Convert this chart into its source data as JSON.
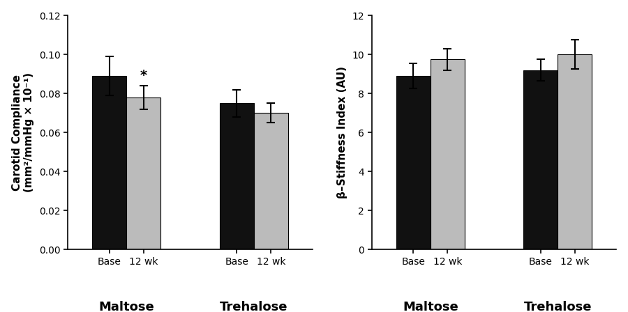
{
  "left_panel": {
    "ylabel": "Carotid Compliance\n(mm²/mmHg × 10⁻¹)",
    "ylim": [
      0,
      0.12
    ],
    "yticks": [
      0.0,
      0.02,
      0.04,
      0.06,
      0.08,
      0.1,
      0.12
    ],
    "ytick_labels": [
      "0.00",
      "0.02",
      "0.04",
      "0.06",
      "0.08",
      "0.10",
      "0.12"
    ],
    "bars": [
      {
        "group": "Maltose",
        "label": "Base",
        "value": 0.089,
        "err": 0.01,
        "color": "#111111"
      },
      {
        "group": "Maltose",
        "label": "12 wk",
        "value": 0.078,
        "err": 0.006,
        "color": "#bbbbbb",
        "sig": "*"
      },
      {
        "group": "Trehalose",
        "label": "Base",
        "value": 0.075,
        "err": 0.007,
        "color": "#111111"
      },
      {
        "group": "Trehalose",
        "label": "12 wk",
        "value": 0.07,
        "err": 0.005,
        "color": "#bbbbbb"
      }
    ],
    "group_labels": [
      "Maltose",
      "Trehalose"
    ],
    "group_centers": [
      1.0,
      2.3
    ],
    "group_label_fontsize": 13,
    "tick_label_fontsize": 10,
    "ylabel_fontsize": 11,
    "xlim": [
      0.4,
      2.9
    ]
  },
  "right_panel": {
    "ylabel": "β–Stiffness Index (AU)",
    "ylim": [
      0,
      12
    ],
    "yticks": [
      0,
      2,
      4,
      6,
      8,
      10,
      12
    ],
    "ytick_labels": [
      "0",
      "2",
      "4",
      "6",
      "8",
      "10",
      "12"
    ],
    "bars": [
      {
        "group": "Maltose",
        "label": "Base",
        "value": 8.9,
        "err": 0.65,
        "color": "#111111"
      },
      {
        "group": "Maltose",
        "label": "12 wk",
        "value": 9.75,
        "err": 0.55,
        "color": "#bbbbbb"
      },
      {
        "group": "Trehalose",
        "label": "Base",
        "value": 9.2,
        "err": 0.55,
        "color": "#111111"
      },
      {
        "group": "Trehalose",
        "label": "12 wk",
        "value": 10.0,
        "err": 0.75,
        "color": "#bbbbbb"
      }
    ],
    "group_labels": [
      "Maltose",
      "Trehalose"
    ],
    "group_centers": [
      1.0,
      2.3
    ],
    "group_label_fontsize": 13,
    "tick_label_fontsize": 10,
    "ylabel_fontsize": 11,
    "xlim": [
      0.4,
      2.9
    ]
  },
  "bar_width": 0.35,
  "background_color": "#ffffff",
  "error_capsize": 4,
  "error_linewidth": 1.5
}
